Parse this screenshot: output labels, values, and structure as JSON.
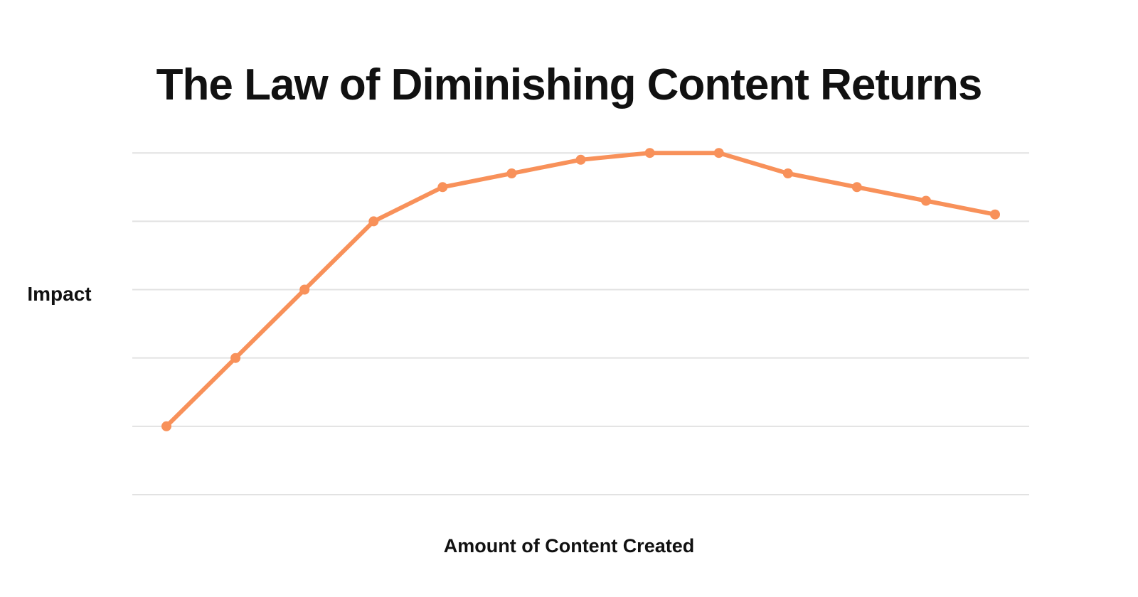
{
  "chart_data": {
    "type": "line",
    "title": "The Law of Diminishing Content Returns",
    "xlabel": "Amount of Content Created",
    "ylabel": "Impact",
    "x": [
      1,
      2,
      3,
      4,
      5,
      6,
      7,
      8,
      9,
      10,
      11,
      12,
      13
    ],
    "series": [
      {
        "name": "Impact",
        "values": [
          1,
          2,
          3,
          4,
          4.5,
          4.7,
          4.9,
          5,
          5,
          4.7,
          4.5,
          4.3,
          4.1
        ]
      }
    ],
    "ylim": [
      0,
      5.45
    ],
    "gridline_values": [
      0,
      1,
      2,
      3,
      4,
      5
    ],
    "grid": "horizontal-only",
    "tick_labels": "none",
    "legend": "none",
    "line_color": "#F8915A",
    "marker_color": "#F8915A",
    "grid_color": "#E2E2E2",
    "text_color": "#111111",
    "background_color": "#FFFFFF"
  }
}
